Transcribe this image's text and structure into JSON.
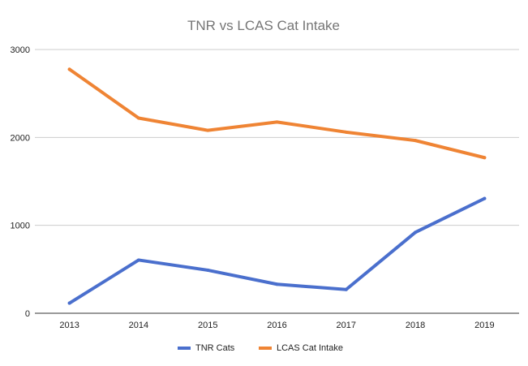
{
  "chart_data": {
    "type": "line",
    "title": "TNR vs LCAS Cat Intake",
    "xlabel": "",
    "ylabel": "",
    "categories": [
      "2013",
      "2014",
      "2015",
      "2016",
      "2017",
      "2018",
      "2019"
    ],
    "series": [
      {
        "name": "TNR Cats",
        "color": "#4a6fcd",
        "values": [
          115,
          605,
          490,
          330,
          270,
          920,
          1305
        ]
      },
      {
        "name": "LCAS Cat Intake",
        "color": "#ef8434",
        "values": [
          2775,
          2220,
          2080,
          2175,
          2060,
          1965,
          1770
        ]
      }
    ],
    "ylim": [
      0,
      3000
    ],
    "yticks": [
      "0",
      "1000",
      "2000",
      "3000"
    ],
    "grid": true,
    "legend_position": "bottom"
  }
}
